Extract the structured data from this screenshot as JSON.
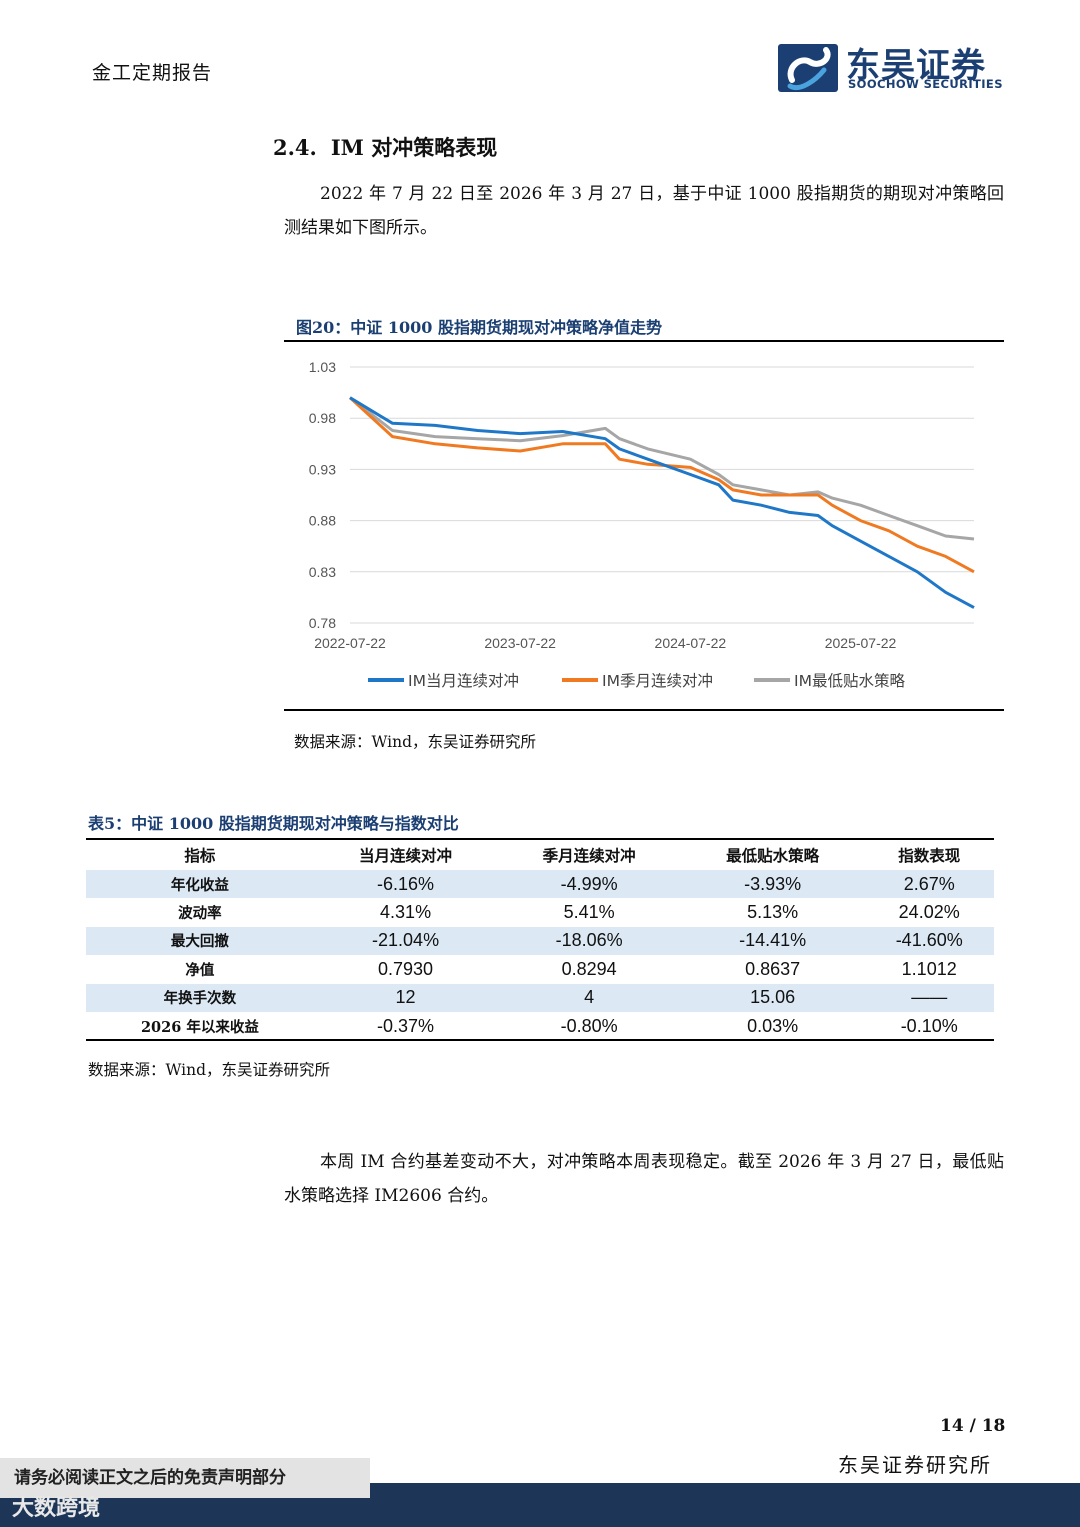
{
  "header": {
    "title": "金工定期报告",
    "brand_cn": "东吴证券",
    "brand_en": "SOOCHOW SECURITIES"
  },
  "section": {
    "number": "2.4.",
    "title": "IM 对冲策略表现"
  },
  "intro": "2022 年 7 月 22 日至 2026 年 3 月 27 日，基于中证 1000 股指期货的期现对冲策略回测结果如下图所示。",
  "figure": {
    "title": "图20：中证 1000 股指期货期现对冲策略净值走势",
    "source": "数据来源：Wind，东吴证券研究所"
  },
  "chart_data": {
    "type": "line",
    "title": "中证 1000 股指期货期现对冲策略净值走势",
    "xlabel": "",
    "ylabel": "",
    "ylim": [
      0.78,
      1.03
    ],
    "yticks": [
      "1.03",
      "0.98",
      "0.93",
      "0.88",
      "0.83",
      "0.78"
    ],
    "xticks": [
      "2022-07-22",
      "2023-07-22",
      "2024-07-22",
      "2025-07-22"
    ],
    "x": [
      "2022-07",
      "2022-10",
      "2023-01",
      "2023-04",
      "2023-07",
      "2023-10",
      "2024-01",
      "2024-02",
      "2024-04",
      "2024-07",
      "2024-09",
      "2024-10",
      "2024-12",
      "2025-02",
      "2025-04",
      "2025-05",
      "2025-07",
      "2025-09",
      "2025-11",
      "2026-01",
      "2026-03"
    ],
    "series": [
      {
        "name": "IM当月连续对冲",
        "color": "#1f77c8",
        "values": [
          1.0,
          0.975,
          0.973,
          0.968,
          0.965,
          0.967,
          0.96,
          0.95,
          0.94,
          0.925,
          0.915,
          0.9,
          0.895,
          0.888,
          0.885,
          0.875,
          0.86,
          0.845,
          0.83,
          0.81,
          0.795
        ]
      },
      {
        "name": "IM季月连续对冲",
        "color": "#f07a22",
        "values": [
          1.0,
          0.962,
          0.955,
          0.951,
          0.948,
          0.955,
          0.955,
          0.94,
          0.935,
          0.932,
          0.92,
          0.91,
          0.905,
          0.905,
          0.905,
          0.895,
          0.88,
          0.87,
          0.855,
          0.845,
          0.83
        ]
      },
      {
        "name": "IM最低贴水策略",
        "color": "#a6a6a6",
        "values": [
          1.0,
          0.968,
          0.962,
          0.96,
          0.958,
          0.963,
          0.97,
          0.96,
          0.95,
          0.94,
          0.925,
          0.915,
          0.91,
          0.905,
          0.908,
          0.902,
          0.895,
          0.885,
          0.875,
          0.865,
          0.862
        ]
      }
    ],
    "legend": "bottom"
  },
  "table": {
    "title": "表5：中证 1000 股指期货期现对冲策略与指数对比",
    "headers": [
      "指标",
      "当月连续对冲",
      "季月连续对冲",
      "最低贴水策略",
      "指数表现"
    ],
    "rows": [
      [
        "年化收益",
        "-6.16%",
        "-4.99%",
        "-3.93%",
        "2.67%"
      ],
      [
        "波动率",
        "4.31%",
        "5.41%",
        "5.13%",
        "24.02%"
      ],
      [
        "最大回撤",
        "-21.04%",
        "-18.06%",
        "-14.41%",
        "-41.60%"
      ],
      [
        "净值",
        "0.7930",
        "0.8294",
        "0.8637",
        "1.1012"
      ],
      [
        "年换手次数",
        "12",
        "4",
        "15.06",
        "——"
      ],
      [
        "2026 年以来收益",
        "-0.37%",
        "-0.80%",
        "0.03%",
        "-0.10%"
      ]
    ],
    "source": "数据来源：Wind，东吴证券研究所"
  },
  "conclusion": "本周 IM 合约基差变动不大，对冲策略本周表现稳定。截至 2026 年 3 月 27 日，最低贴水策略选择 IM2606 合约。",
  "footer": {
    "page": "14 / 18",
    "org": "东吴证券研究所",
    "disclaimer": "请务必阅读正文之后的免责声明部分",
    "watermark": "大数跨境"
  }
}
